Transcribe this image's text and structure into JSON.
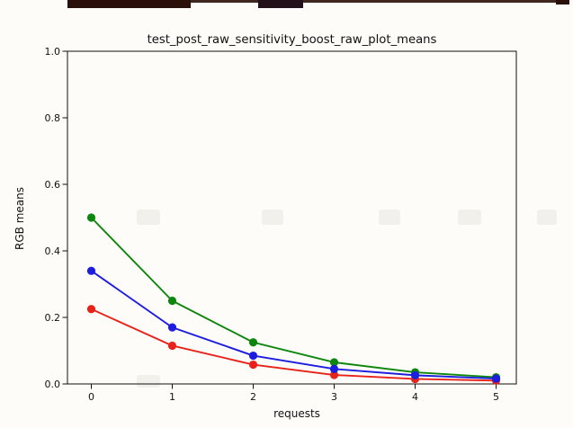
{
  "window": {
    "background": "#fdfcf8",
    "artifact_bar_color": "#2a1008"
  },
  "chart_data": {
    "type": "line",
    "title": "test_post_raw_sensitivity_boost_raw_plot_means",
    "xlabel": "requests",
    "ylabel": "RGB means",
    "x": [
      0,
      1,
      2,
      3,
      4,
      5
    ],
    "series": [
      {
        "name": "red",
        "color": "#e8221a",
        "marker": "o",
        "values": [
          0.225,
          0.115,
          0.058,
          0.027,
          0.015,
          0.01
        ]
      },
      {
        "name": "green",
        "color": "#0e860e",
        "marker": "o",
        "values": [
          0.5,
          0.25,
          0.125,
          0.065,
          0.035,
          0.02
        ]
      },
      {
        "name": "blue",
        "color": "#1d1de0",
        "marker": "o",
        "values": [
          0.34,
          0.17,
          0.085,
          0.045,
          0.026,
          0.016
        ]
      }
    ],
    "xticks": [
      "0",
      "1",
      "2",
      "3",
      "4",
      "5"
    ],
    "yticks": [
      "0.0",
      "0.2",
      "0.4",
      "0.6",
      "0.8",
      "1.0"
    ],
    "xlim": [
      -0.29,
      5.26
    ],
    "ylim": [
      0,
      1
    ],
    "grid": false,
    "legend_position": "none"
  }
}
